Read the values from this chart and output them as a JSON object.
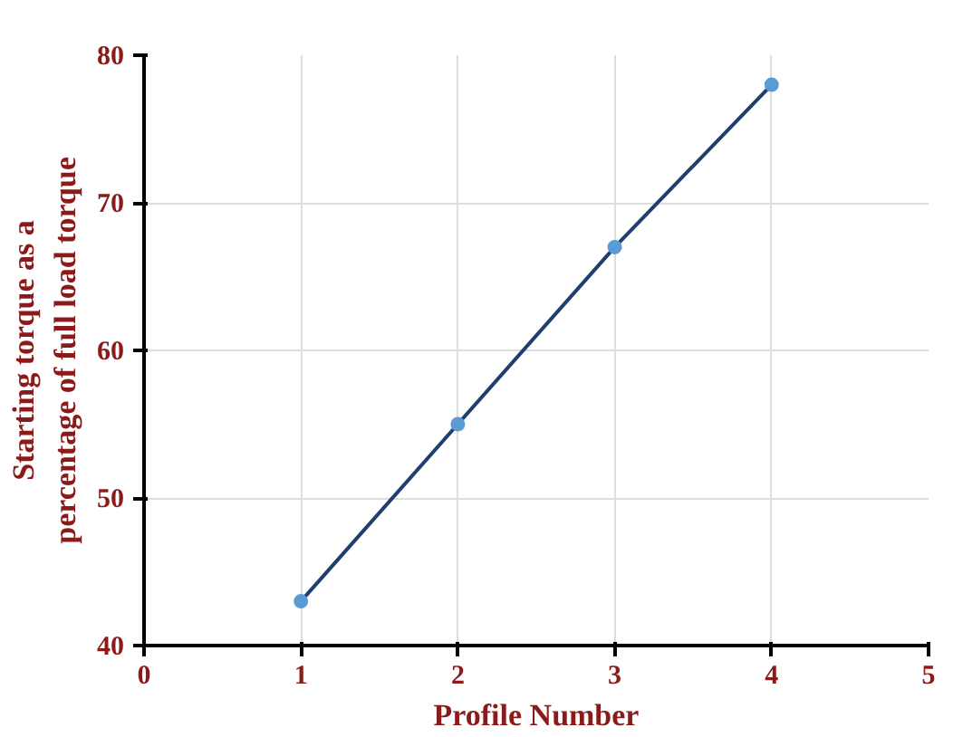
{
  "chart_data": {
    "type": "line",
    "xlabel": "Profile Number",
    "ylabel": "Starting torque as a\npercentage of full load torque",
    "x": [
      1,
      2,
      3,
      4
    ],
    "series": [
      {
        "color": "#1f3f6e",
        "colors": [
          "#5b9bd5",
          "#5b9bd5",
          "#5b9bd5",
          "#5b9bd5"
        ],
        "values": [
          43,
          55,
          67,
          78
        ]
      }
    ],
    "marker": "circle",
    "xlim": [
      0,
      5
    ],
    "xticks": [
      0,
      1,
      2,
      3,
      4,
      5
    ],
    "ylim": [
      40,
      80
    ],
    "yticks": [
      40,
      50,
      60,
      70,
      80
    ],
    "grid": true
  }
}
